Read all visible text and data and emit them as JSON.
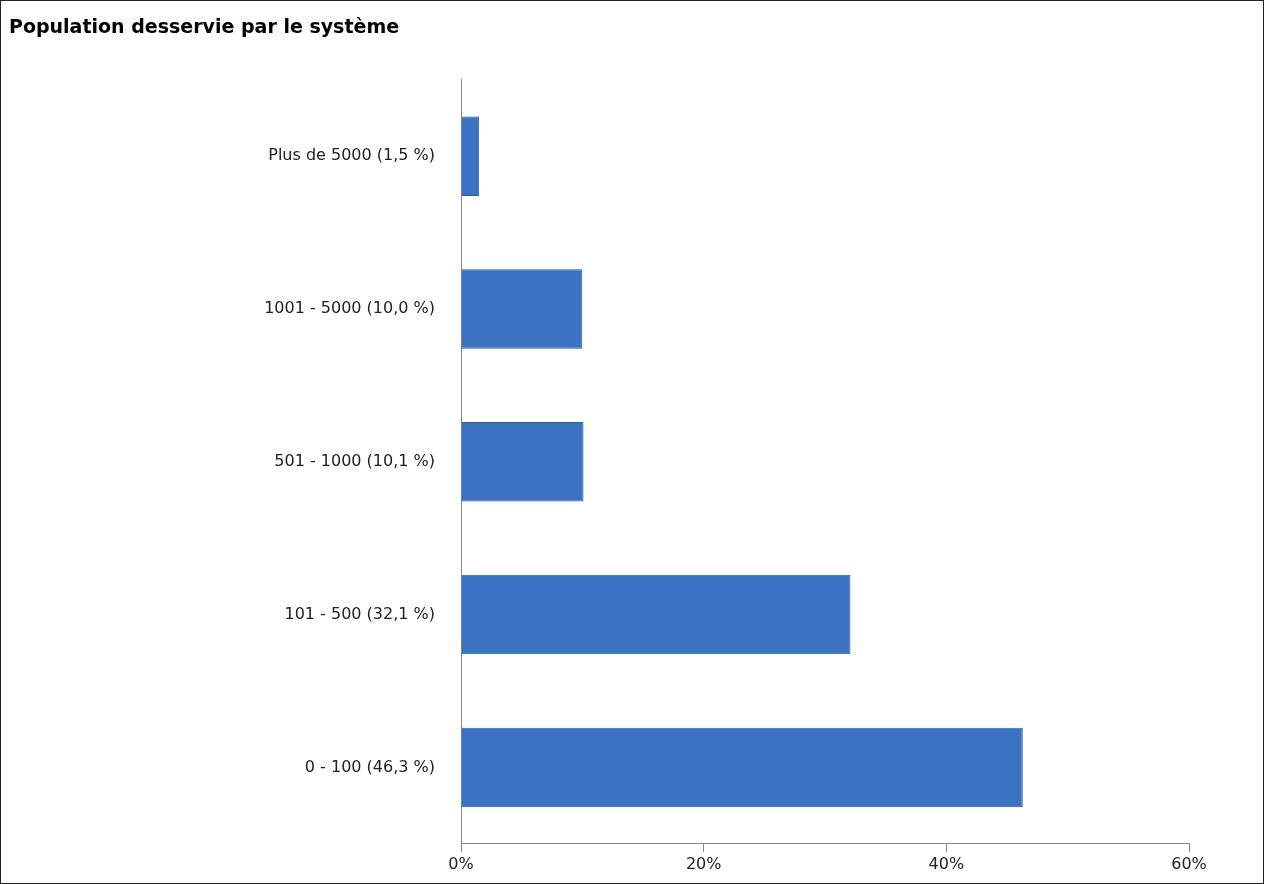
{
  "chart_data": {
    "type": "bar",
    "orientation": "horizontal",
    "title": "Population desservie par le système",
    "categories": [
      "Plus de 5000 (1,5 %)",
      "1001 - 5000 (10,0 %)",
      "501 - 1000 (10,1 %)",
      "101 - 500 (32,1 %)",
      "0 - 100 (46,3 %)"
    ],
    "values": [
      1.5,
      10.0,
      10.1,
      32.1,
      46.3
    ],
    "color": "#3b73c2",
    "xlim": [
      0,
      60
    ],
    "xticks": [
      {
        "value": 0,
        "label": "0%"
      },
      {
        "value": 20,
        "label": "20%"
      },
      {
        "value": 40,
        "label": "40%"
      },
      {
        "value": 60,
        "label": "60%"
      }
    ],
    "grid": false,
    "legend": false
  }
}
